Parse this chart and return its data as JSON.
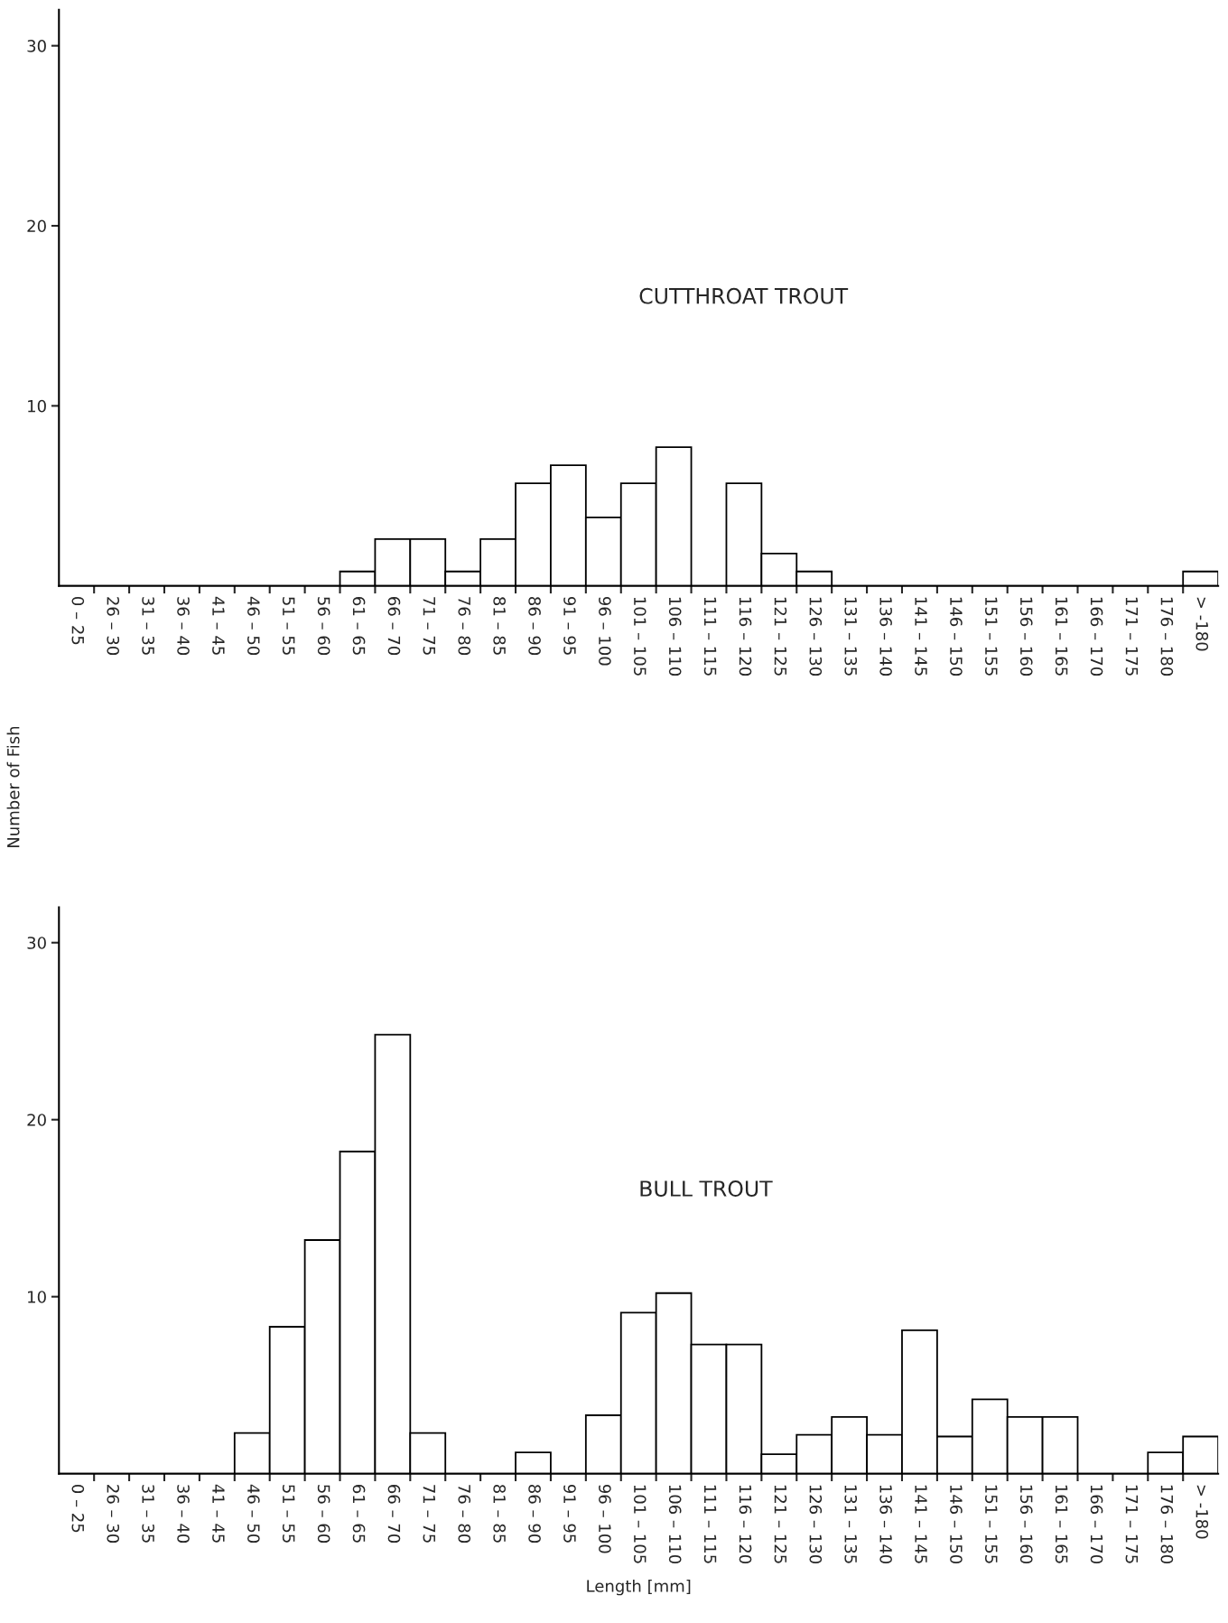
{
  "chart_data": [
    {
      "type": "bar",
      "title": "CUTTHROAT TROUT",
      "categories": [
        "0 – 25",
        "26 – 30",
        "31 – 35",
        "36 – 40",
        "41 – 45",
        "46 – 50",
        "51 – 55",
        "56 – 60",
        "61 – 65",
        "66 – 70",
        "71 – 75",
        "76 – 80",
        "81 – 85",
        "86 – 90",
        "91 – 95",
        "96 – 100",
        "101 – 105",
        "106 – 110",
        "111 – 115",
        "116 – 120",
        "121 – 125",
        "126 – 130",
        "131 – 135",
        "136 – 140",
        "141 – 145",
        "146 – 150",
        "151 – 155",
        "156 – 160",
        "161 – 165",
        "166 – 170",
        "171 – 175",
        "176 – 180",
        "> -180"
      ],
      "values": [
        0,
        0,
        0,
        0,
        0,
        0,
        0,
        0,
        0.8,
        2.6,
        2.6,
        0.8,
        2.6,
        5.7,
        6.7,
        3.8,
        5.7,
        7.7,
        0,
        5.7,
        1.8,
        0.8,
        0,
        0,
        0,
        0,
        0,
        0,
        0,
        0,
        0,
        0,
        0.8
      ],
      "color": "#ffffff",
      "ylim": [
        0,
        32
      ],
      "yticks": [
        10,
        20,
        30
      ],
      "grid": false,
      "legend": false
    },
    {
      "type": "bar",
      "title": "BULL TROUT",
      "xlabel": "Length [mm]",
      "ylabel": "Number of Fish",
      "categories": [
        "0 – 25",
        "26 – 30",
        "31 – 35",
        "36 – 40",
        "41 – 45",
        "46 – 50",
        "51 – 55",
        "56 – 60",
        "61 – 65",
        "66 – 70",
        "71 – 75",
        "76 – 80",
        "81 – 85",
        "86 – 90",
        "91 – 95",
        "96 – 100",
        "101 – 105",
        "106 – 110",
        "111 – 115",
        "116 – 120",
        "121 – 125",
        "126 – 130",
        "131 – 135",
        "136 – 140",
        "141 – 145",
        "146 – 150",
        "151 – 155",
        "156 – 160",
        "161 – 165",
        "166 – 170",
        "171 – 175",
        "176 – 180",
        "> -180"
      ],
      "values": [
        0,
        0,
        0,
        0,
        0,
        2.3,
        8.3,
        13.2,
        18.2,
        24.8,
        2.3,
        0,
        0,
        1.2,
        0,
        3.3,
        9.1,
        10.2,
        7.3,
        7.3,
        1.1,
        2.2,
        3.2,
        2.2,
        8.1,
        2.1,
        4.2,
        3.2,
        3.2,
        0,
        0,
        1.2,
        2.1
      ],
      "color": "#ffffff",
      "ylim": [
        0,
        32
      ],
      "yticks": [
        10,
        20,
        30
      ],
      "grid": false,
      "legend": false
    }
  ]
}
